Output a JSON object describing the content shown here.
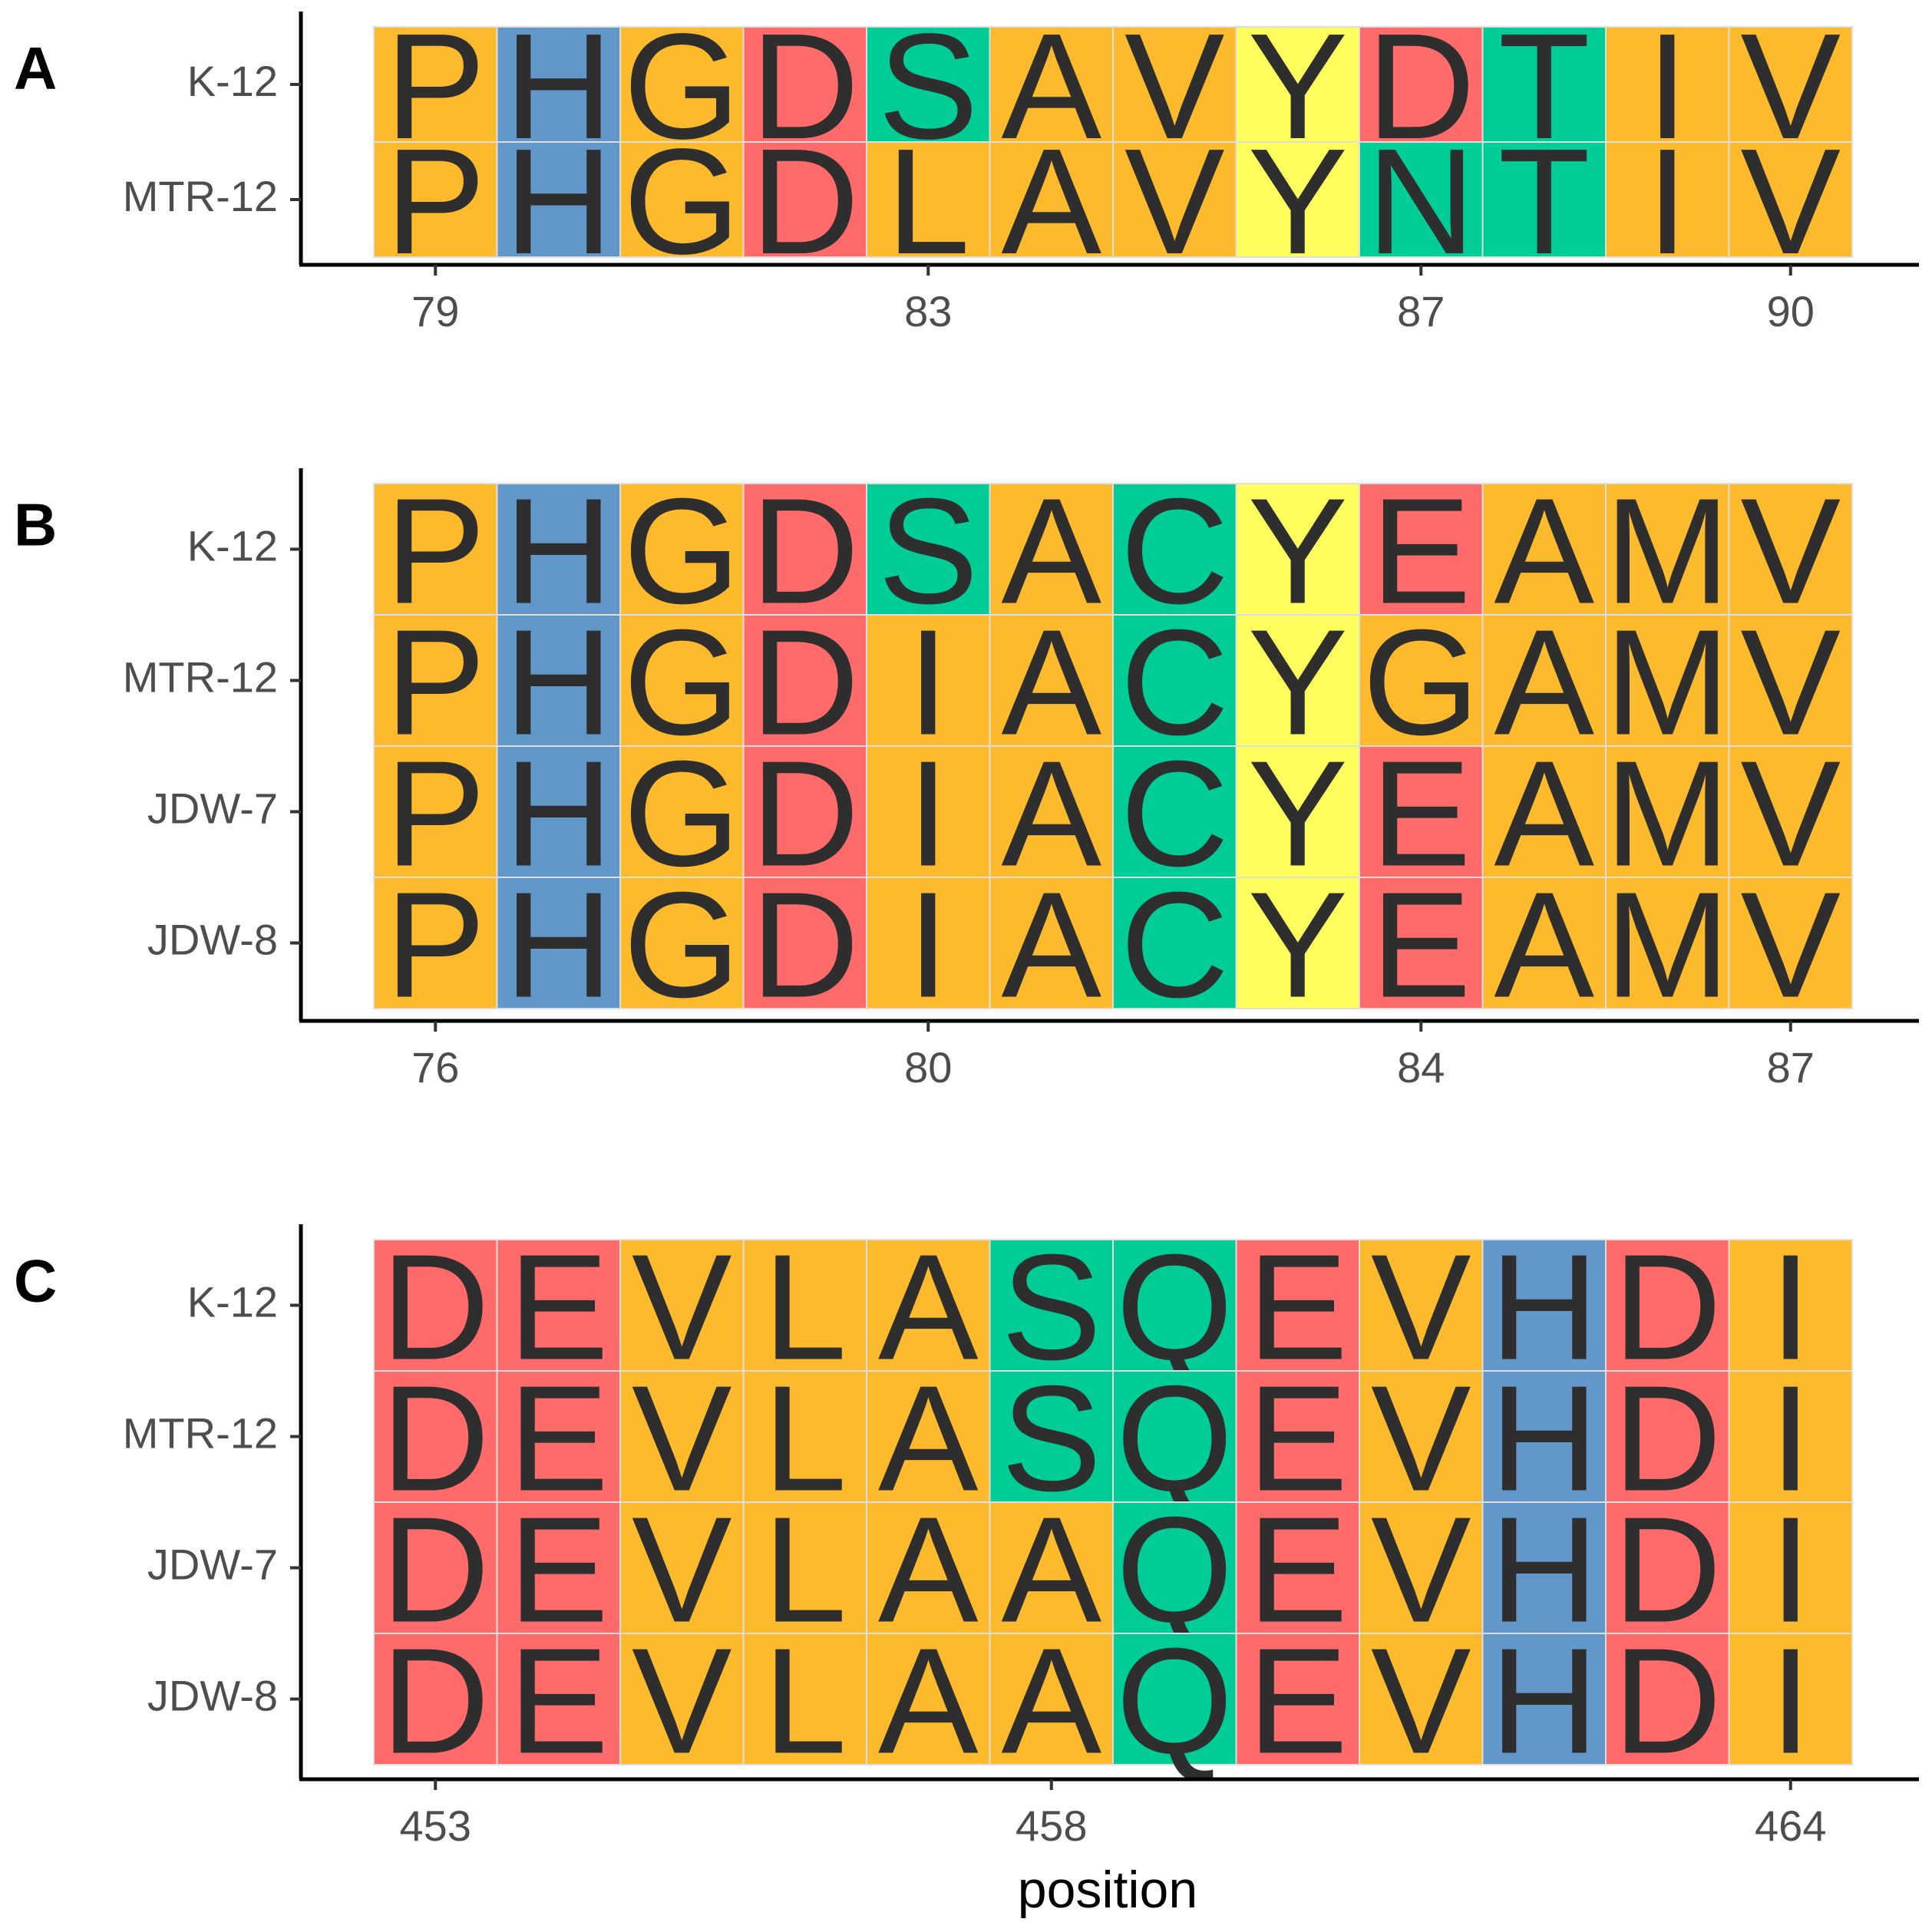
{
  "colors": {
    "orange": "#FDBA2C",
    "blue": "#6197C9",
    "red": "#FF6B6B",
    "green": "#00CC96",
    "yellow": "#FFFF5E"
  },
  "chart_data": [
    {
      "type": "sequence-logo-alignment",
      "panel": "A",
      "rows": [
        "K-12",
        "MTR-12"
      ],
      "columns": 12,
      "sequences": [
        [
          "P",
          "H",
          "G",
          "D",
          "S",
          "A",
          "V",
          "Y",
          "D",
          "T",
          "I",
          "V"
        ],
        [
          "P",
          "H",
          "G",
          "D",
          "L",
          "A",
          "V",
          "Y",
          "N",
          "T",
          "I",
          "V"
        ]
      ],
      "colors": [
        [
          "orange",
          "blue",
          "orange",
          "red",
          "green",
          "orange",
          "orange",
          "yellow",
          "red",
          "green",
          "orange",
          "orange"
        ],
        [
          "orange",
          "blue",
          "orange",
          "red",
          "orange",
          "orange",
          "orange",
          "yellow",
          "green",
          "green",
          "orange",
          "orange"
        ]
      ],
      "ticks": [
        {
          "col": 0,
          "label": "79"
        },
        {
          "col": 4,
          "label": "83"
        },
        {
          "col": 8,
          "label": "87"
        },
        {
          "col": 11,
          "label": "90"
        }
      ],
      "xlabel": ""
    },
    {
      "type": "sequence-logo-alignment",
      "panel": "B",
      "rows": [
        "K-12",
        "MTR-12",
        "JDW-7",
        "JDW-8"
      ],
      "columns": 12,
      "sequences": [
        [
          "P",
          "H",
          "G",
          "D",
          "S",
          "A",
          "C",
          "Y",
          "E",
          "A",
          "M",
          "V"
        ],
        [
          "P",
          "H",
          "G",
          "D",
          "I",
          "A",
          "C",
          "Y",
          "G",
          "A",
          "M",
          "V"
        ],
        [
          "P",
          "H",
          "G",
          "D",
          "I",
          "A",
          "C",
          "Y",
          "E",
          "A",
          "M",
          "V"
        ],
        [
          "P",
          "H",
          "G",
          "D",
          "I",
          "A",
          "C",
          "Y",
          "E",
          "A",
          "M",
          "V"
        ]
      ],
      "colors": [
        [
          "orange",
          "blue",
          "orange",
          "red",
          "green",
          "orange",
          "green",
          "yellow",
          "red",
          "orange",
          "orange",
          "orange"
        ],
        [
          "orange",
          "blue",
          "orange",
          "red",
          "orange",
          "orange",
          "green",
          "yellow",
          "orange",
          "orange",
          "orange",
          "orange"
        ],
        [
          "orange",
          "blue",
          "orange",
          "red",
          "orange",
          "orange",
          "green",
          "yellow",
          "red",
          "orange",
          "orange",
          "orange"
        ],
        [
          "orange",
          "blue",
          "orange",
          "red",
          "orange",
          "orange",
          "green",
          "yellow",
          "red",
          "orange",
          "orange",
          "orange"
        ]
      ],
      "ticks": [
        {
          "col": 0,
          "label": "76"
        },
        {
          "col": 4,
          "label": "80"
        },
        {
          "col": 8,
          "label": "84"
        },
        {
          "col": 11,
          "label": "87"
        }
      ],
      "xlabel": ""
    },
    {
      "type": "sequence-logo-alignment",
      "panel": "C",
      "rows": [
        "K-12",
        "MTR-12",
        "JDW-7",
        "JDW-8"
      ],
      "columns": 12,
      "sequences": [
        [
          "D",
          "E",
          "V",
          "L",
          "A",
          "S",
          "Q",
          "E",
          "V",
          "H",
          "D",
          "I"
        ],
        [
          "D",
          "E",
          "V",
          "L",
          "A",
          "S",
          "Q",
          "E",
          "V",
          "H",
          "D",
          "I"
        ],
        [
          "D",
          "E",
          "V",
          "L",
          "A",
          "A",
          "Q",
          "E",
          "V",
          "H",
          "D",
          "I"
        ],
        [
          "D",
          "E",
          "V",
          "L",
          "A",
          "A",
          "Q",
          "E",
          "V",
          "H",
          "D",
          "I"
        ]
      ],
      "colors": [
        [
          "red",
          "red",
          "orange",
          "orange",
          "orange",
          "green",
          "green",
          "red",
          "orange",
          "blue",
          "red",
          "orange"
        ],
        [
          "red",
          "red",
          "orange",
          "orange",
          "orange",
          "green",
          "green",
          "red",
          "orange",
          "blue",
          "red",
          "orange"
        ],
        [
          "red",
          "red",
          "orange",
          "orange",
          "orange",
          "orange",
          "green",
          "red",
          "orange",
          "blue",
          "red",
          "orange"
        ],
        [
          "red",
          "red",
          "orange",
          "orange",
          "orange",
          "orange",
          "green",
          "red",
          "orange",
          "blue",
          "red",
          "orange"
        ]
      ],
      "ticks": [
        {
          "col": 0,
          "label": "453"
        },
        {
          "col": 5,
          "label": "458"
        },
        {
          "col": 11,
          "label": "464"
        }
      ],
      "xlabel": "position"
    }
  ]
}
